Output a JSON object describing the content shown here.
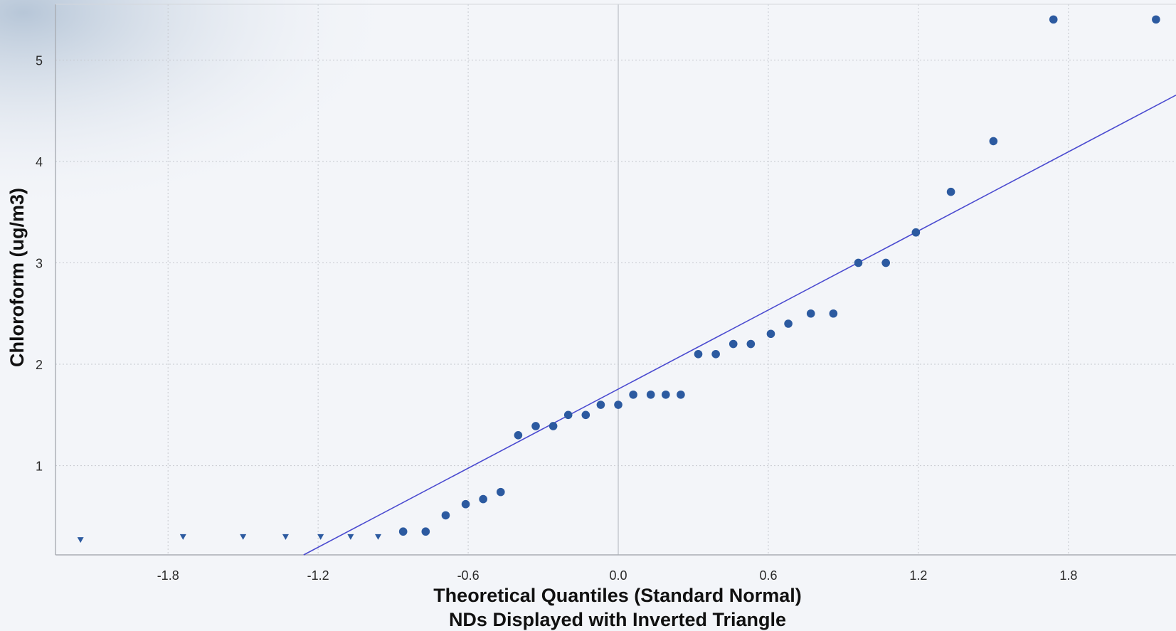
{
  "chart_data": {
    "type": "scatter",
    "xlabel": "Theoretical Quantiles (Standard Normal)",
    "xlabel2": "NDs Displayed with Inverted Triangle",
    "ylabel": "Chloroform (ug/m3)",
    "xlim": [
      -2.25,
      2.23
    ],
    "ylim": [
      0.12,
      5.55
    ],
    "x_ticks": [
      -1.8,
      -1.2,
      -0.6,
      0.0,
      0.6,
      1.2,
      1.8
    ],
    "x_tick_labels": [
      "-1.8",
      "-1.2",
      "-0.6",
      "0.0",
      "0.6",
      "1.2",
      "1.8"
    ],
    "y_ticks": [
      1,
      2,
      3,
      4,
      5
    ],
    "y_tick_labels": [
      "1",
      "2",
      "3",
      "4",
      "5"
    ],
    "grid": true,
    "colors": {
      "points": "#2c5aa0",
      "fit_line": "#4b4bd0",
      "grid": "#c6c9cf",
      "zero_line": "#c4c8ce",
      "axis": "#a9adb4"
    },
    "series": [
      {
        "marker": "inverted-triangle",
        "x": [
          -2.15,
          -1.74,
          -1.5,
          -1.33,
          -1.19,
          -1.07,
          -0.96
        ],
        "y": [
          0.27,
          0.3,
          0.3,
          0.3,
          0.3,
          0.3,
          0.3
        ]
      },
      {
        "marker": "circle",
        "x": [
          -0.86,
          -0.77,
          -0.69,
          -0.61,
          -0.54,
          -0.47,
          -0.4,
          -0.33,
          -0.26,
          -0.2,
          -0.13,
          -0.07,
          0.0,
          0.06,
          0.13,
          0.19,
          0.25,
          0.32,
          0.39,
          0.46,
          0.53,
          0.61,
          0.68,
          0.77,
          0.86,
          0.96,
          1.07,
          1.19,
          1.33,
          1.5,
          1.74,
          2.15
        ],
        "y": [
          0.35,
          0.35,
          0.51,
          0.62,
          0.67,
          0.74,
          1.3,
          1.39,
          1.39,
          1.5,
          1.5,
          1.6,
          1.6,
          1.7,
          1.7,
          1.7,
          1.7,
          2.1,
          2.1,
          2.2,
          2.2,
          2.3,
          2.4,
          2.5,
          2.5,
          3.0,
          3.0,
          3.3,
          3.7,
          4.2,
          5.4,
          5.4
        ]
      }
    ],
    "fit_line": {
      "slope": 1.3,
      "intercept": 1.755
    }
  }
}
